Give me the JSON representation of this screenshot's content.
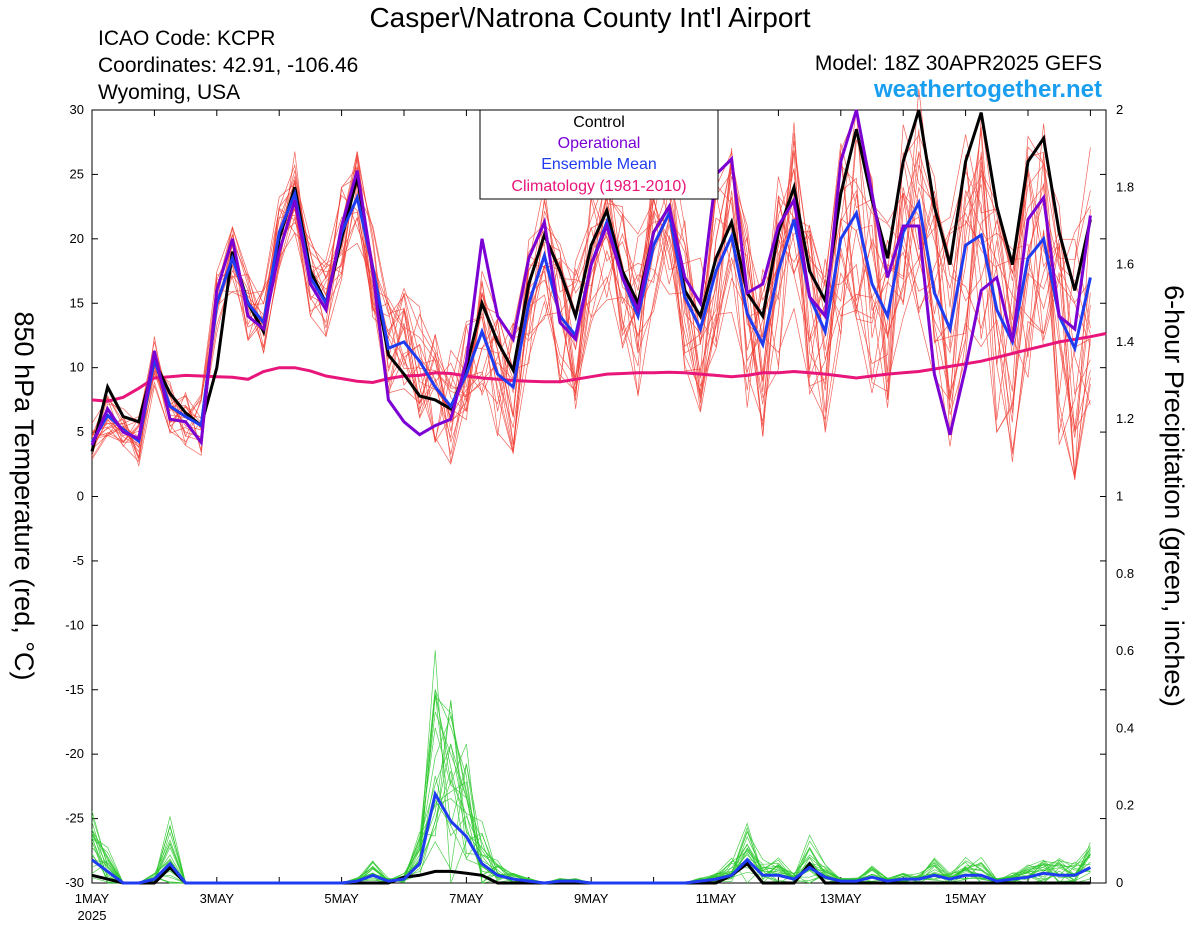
{
  "header": {
    "title": "Casper\\/Natrona County Int'l Airport",
    "icao": "ICAO Code: KCPR",
    "coordinates": "Coordinates: 42.91, -106.46",
    "region": "Wyoming, USA",
    "model": "Model: 18Z 30APR2025 GEFS",
    "site": "weathertogether.net"
  },
  "colors": {
    "control": "#000000",
    "operational": "#7b00d4",
    "ensemble_mean": "#1f3cf0",
    "climatology": "#e8157a",
    "members_temp": "#f03c32",
    "members_precip": "#2ec82e",
    "site": "#1a9ef0"
  },
  "chart_data": {
    "type": "line",
    "legend": {
      "placement": "top-center",
      "entries": [
        "Control",
        "Operational",
        "Ensemble Mean",
        "Climatology (1981-2010)"
      ]
    },
    "x_axis": {
      "start": "1MAY 2025",
      "step_hours": 6,
      "tick_labels": [
        "1MAY",
        "3MAY",
        "5MAY",
        "7MAY",
        "9MAY",
        "11MAY",
        "13MAY",
        "15MAY"
      ],
      "tick_days": [
        0,
        2,
        4,
        6,
        8,
        10,
        12,
        14
      ],
      "year_label": "2025",
      "range_days": [
        0,
        16.25
      ]
    },
    "y_left": {
      "label": "850 hPa Temperature (red, °C)",
      "range": [
        -30,
        30
      ],
      "ticks": [
        30,
        25,
        20,
        15,
        10,
        5,
        0,
        -5,
        -10,
        -15,
        -20,
        -25,
        -30
      ]
    },
    "y_right": {
      "label": "6-hour Precipitation (green, inches)",
      "range": [
        0,
        2
      ],
      "ticks": [
        2,
        1.8,
        1.6,
        1.4,
        1.2,
        1,
        0.8,
        0.6,
        0.4,
        0.2,
        0
      ]
    },
    "temperature": {
      "control": [
        3.5,
        8.5,
        6.2,
        5.8,
        10.5,
        8.0,
        6.5,
        5.5,
        10.0,
        19.0,
        15.0,
        12.8,
        20.0,
        24.0,
        17.5,
        15.0,
        20.0,
        24.8,
        17.5,
        11.0,
        9.5,
        7.8,
        7.5,
        6.8,
        10.0,
        15.0,
        12.0,
        9.8,
        16.5,
        20.3,
        17.5,
        14.0,
        19.5,
        22.2,
        17.5,
        15.0,
        20.5,
        22.5,
        16.0,
        14.0,
        18.5,
        21.3,
        15.8,
        14.0,
        20.5,
        24.0,
        17.5,
        15.2,
        23.5,
        28.5,
        23.0,
        18.5,
        26.0,
        30.0,
        22.5,
        18.0,
        26.0,
        29.8,
        22.5,
        18.0,
        26.0,
        27.8,
        20.5,
        16.0,
        21.5
      ],
      "operational": [
        4.0,
        6.8,
        5.0,
        4.5,
        11.3,
        6.0,
        5.8,
        4.2,
        16.0,
        20.0,
        14.0,
        13.0,
        19.0,
        23.0,
        16.5,
        14.5,
        21.0,
        25.3,
        17.5,
        7.5,
        5.8,
        4.8,
        5.5,
        6.0,
        10.5,
        20.0,
        14.0,
        12.2,
        18.5,
        21.3,
        13.5,
        12.2,
        18.0,
        21.0,
        17.0,
        14.5,
        20.5,
        22.5,
        17.0,
        15.0,
        25.0,
        26.2,
        15.8,
        16.5,
        21.0,
        23.0,
        15.5,
        14.0,
        26.0,
        30.0,
        23.5,
        17.0,
        21.0,
        21.0,
        9.5,
        4.8,
        10.0,
        16.0,
        17.0,
        12.0,
        21.5,
        23.2,
        14.0,
        13.0,
        21.8
      ],
      "ensemble_mean": [
        4.2,
        6.3,
        5.2,
        4.3,
        10.6,
        7.0,
        6.2,
        5.5,
        15.0,
        18.5,
        15.0,
        13.5,
        20.5,
        23.5,
        17.0,
        15.0,
        20.5,
        23.2,
        17.8,
        11.5,
        12.0,
        10.5,
        8.5,
        7.0,
        9.5,
        12.8,
        9.5,
        8.5,
        15.0,
        18.7,
        14.0,
        12.5,
        18.0,
        21.3,
        17.0,
        14.0,
        19.5,
        22.0,
        15.5,
        13.0,
        17.5,
        20.2,
        14.2,
        11.8,
        17.5,
        21.5,
        15.5,
        12.8,
        20.0,
        22.0,
        16.5,
        14.0,
        20.5,
        22.8,
        15.8,
        13.0,
        19.5,
        20.3,
        14.5,
        12.0,
        18.5,
        20.0,
        14.0,
        11.5,
        17.0
      ],
      "climatology": [
        [
          0,
          7.5
        ],
        [
          1,
          7.4
        ],
        [
          2,
          7.7
        ],
        [
          3,
          8.4
        ],
        [
          4,
          9.2
        ],
        [
          5,
          9.3
        ],
        [
          6,
          9.4
        ],
        [
          7,
          9.35
        ],
        [
          8,
          9.3
        ],
        [
          9,
          9.25
        ],
        [
          10,
          9.1
        ],
        [
          11,
          9.7
        ],
        [
          12,
          10.0
        ],
        [
          13,
          10.0
        ],
        [
          14,
          9.75
        ],
        [
          15,
          9.35
        ],
        [
          16,
          9.15
        ],
        [
          17,
          8.95
        ],
        [
          18,
          8.85
        ],
        [
          19,
          9.15
        ],
        [
          20,
          9.35
        ],
        [
          21,
          9.4
        ],
        [
          22,
          9.6
        ],
        [
          23,
          9.55
        ],
        [
          24,
          9.35
        ],
        [
          25,
          9.2
        ],
        [
          26,
          9.1
        ],
        [
          27,
          9.0
        ],
        [
          28,
          8.95
        ],
        [
          29,
          8.9
        ],
        [
          30,
          8.9
        ],
        [
          31,
          9.1
        ],
        [
          32,
          9.3
        ],
        [
          33,
          9.5
        ],
        [
          34,
          9.55
        ],
        [
          35,
          9.6
        ],
        [
          36,
          9.6
        ],
        [
          37,
          9.65
        ],
        [
          38,
          9.6
        ],
        [
          39,
          9.5
        ],
        [
          40,
          9.4
        ],
        [
          41,
          9.3
        ],
        [
          42,
          9.4
        ],
        [
          43,
          9.6
        ],
        [
          44,
          9.6
        ],
        [
          45,
          9.7
        ],
        [
          46,
          9.6
        ],
        [
          47,
          9.5
        ],
        [
          48,
          9.35
        ],
        [
          49,
          9.2
        ],
        [
          50,
          9.35
        ],
        [
          51,
          9.5
        ],
        [
          52,
          9.6
        ],
        [
          53,
          9.7
        ],
        [
          54,
          9.9
        ],
        [
          55,
          10.1
        ],
        [
          56,
          10.3
        ],
        [
          57,
          10.5
        ],
        [
          58,
          10.8
        ],
        [
          59,
          11.1
        ],
        [
          60,
          11.4
        ],
        [
          61,
          11.7
        ],
        [
          62,
          12.0
        ],
        [
          63,
          12.2
        ],
        [
          64,
          12.4
        ],
        [
          65,
          12.65
        ]
      ],
      "member_count": 20
    },
    "precipitation": {
      "control": [
        0.02,
        0.01,
        0,
        0,
        0,
        0.04,
        0,
        0,
        0,
        0,
        0,
        0,
        0,
        0,
        0,
        0,
        0,
        0,
        0,
        0,
        0.015,
        0.02,
        0.03,
        0.03,
        0.025,
        0.02,
        0,
        0,
        0,
        0,
        0,
        0,
        0,
        0,
        0,
        0,
        0,
        0,
        0,
        0,
        0,
        0.02,
        0.05,
        0,
        0,
        0,
        0.05,
        0,
        0,
        0,
        0,
        0,
        0,
        0,
        0,
        0,
        0,
        0,
        0,
        0,
        0,
        0,
        0,
        0,
        0
      ],
      "ensemble_mean": [
        0.06,
        0.03,
        0,
        0,
        0.01,
        0.05,
        0,
        0,
        0,
        0,
        0,
        0,
        0,
        0,
        0,
        0,
        0,
        0.005,
        0.02,
        0.005,
        0.01,
        0.05,
        0.23,
        0.16,
        0.12,
        0.05,
        0.02,
        0.01,
        0.005,
        0,
        0.005,
        0.005,
        0,
        0,
        0,
        0,
        0,
        0,
        0,
        0.005,
        0.01,
        0.02,
        0.06,
        0.02,
        0.02,
        0.01,
        0.04,
        0.015,
        0.005,
        0.005,
        0.015,
        0.005,
        0.01,
        0.01,
        0.02,
        0.01,
        0.02,
        0.02,
        0.005,
        0.01,
        0.015,
        0.025,
        0.02,
        0.02,
        0.04
      ]
    }
  }
}
